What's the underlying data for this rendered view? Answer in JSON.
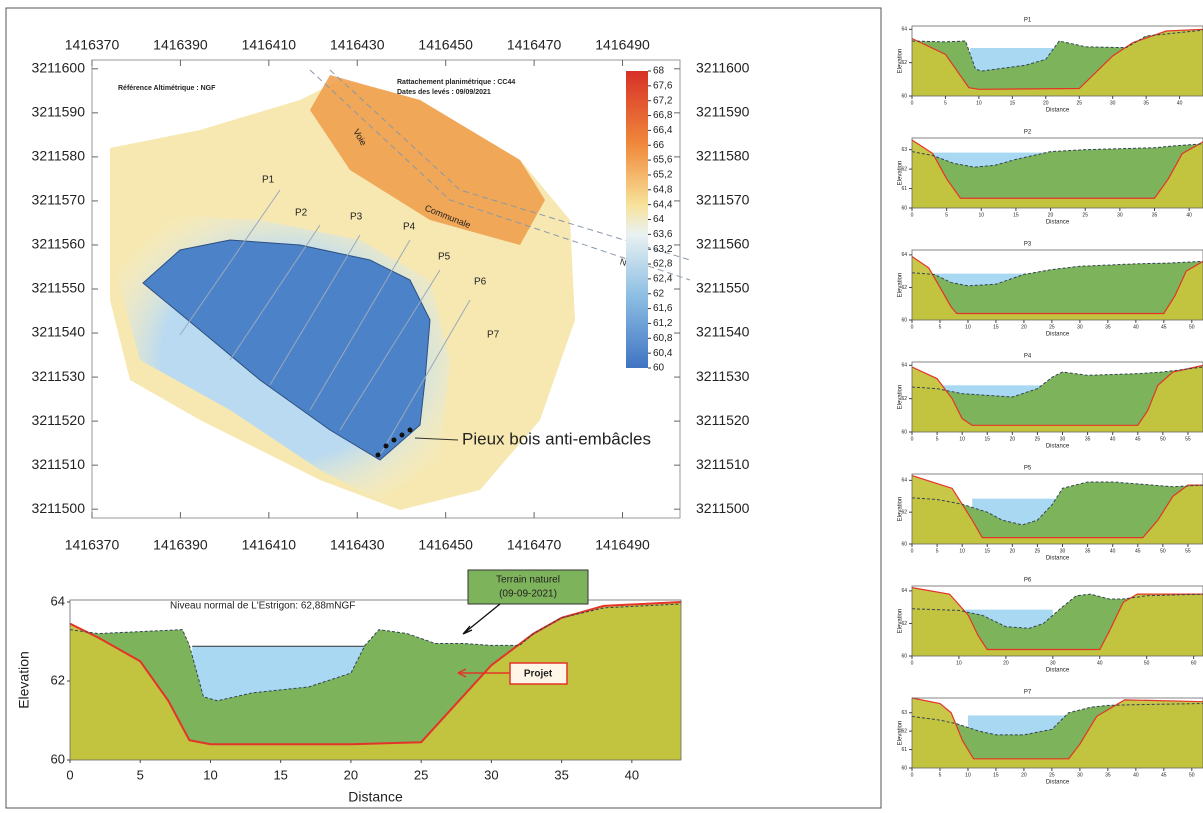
{
  "map": {
    "xlim": [
      1416370,
      1416503
    ],
    "ylim": [
      3211498,
      3211602
    ],
    "xticks": [
      1416370,
      1416390,
      1416410,
      1416430,
      1416450,
      1416470,
      1416490
    ],
    "yticks": [
      3211500,
      3211510,
      3211520,
      3211530,
      3211540,
      3211550,
      3211560,
      3211570,
      3211580,
      3211590,
      3211600
    ],
    "reference": "Référence Altimétrique : NGF",
    "rattachement": "Rattachement planimétrique : CC44",
    "dates": "Dates des levés : 09/09/2021",
    "road": [
      "Voie",
      "Communale",
      "N°5"
    ],
    "profile_labels": [
      "P1",
      "P2",
      "P3",
      "P4",
      "P5",
      "P6",
      "P7"
    ],
    "piles": "Pieux bois anti-embâcles",
    "legend": {
      "lim": [
        60,
        68
      ],
      "ticks": [
        68,
        {
          "value": 67.6,
          "label": "67,6"
        },
        {
          "value": 67.2,
          "label": "67,2"
        },
        {
          "value": 66.8,
          "label": "66,8"
        },
        {
          "value": 66.4,
          "label": "66,4"
        },
        66,
        {
          "value": 65.6,
          "label": "65,6"
        },
        {
          "value": 65.2,
          "label": "65,2"
        },
        {
          "value": 64.8,
          "label": "64,8"
        },
        {
          "value": 64.4,
          "label": "64,4"
        },
        64,
        {
          "value": 63.6,
          "label": "63,6"
        },
        {
          "value": 63.2,
          "label": "63,2"
        },
        {
          "value": 62.8,
          "label": "62,8"
        },
        {
          "value": 62.4,
          "label": "62,4"
        },
        62,
        {
          "value": 61.6,
          "label": "61,6"
        },
        {
          "value": 61.2,
          "label": "61,2"
        },
        {
          "value": 60.8,
          "label": "60,8"
        },
        {
          "value": 60.4,
          "label": "60,4"
        },
        60
      ]
    }
  },
  "main_profile": {
    "xlim": [
      0,
      43.5
    ],
    "ylim": [
      60,
      64.05
    ],
    "xticks": [
      0,
      5,
      10,
      15,
      20,
      25,
      30,
      35,
      40
    ],
    "yticks": [
      60,
      62,
      64
    ],
    "x_label": "Distance",
    "y_label": "Elevation",
    "water_level_label": "Niveau normal de L'Estrigon: 62,88mNGF",
    "terrain_label": [
      "Terrain naturel",
      "(09-09-2021)"
    ],
    "project_label": "Projet",
    "water": {
      "x": [
        8.7,
        26
      ],
      "level": 62.88
    },
    "terrain": {
      "x": [
        0,
        2,
        5,
        8,
        8.5,
        9.5,
        10.5,
        13,
        17,
        20,
        21,
        22,
        24,
        26,
        28,
        30,
        32,
        33,
        35,
        38,
        43.5
      ],
      "y": [
        63.3,
        63.2,
        63.25,
        63.3,
        62.9,
        61.6,
        61.5,
        61.7,
        61.85,
        62.2,
        62.9,
        63.3,
        63.2,
        62.95,
        62.95,
        62.9,
        62.9,
        63.2,
        63.6,
        63.85,
        63.95
      ]
    },
    "project": {
      "x": [
        0,
        2,
        5,
        7,
        8.5,
        10,
        20,
        25,
        30,
        33,
        35,
        38,
        43.5
      ],
      "y": [
        63.45,
        63.1,
        62.5,
        61.5,
        60.5,
        60.4,
        60.4,
        60.45,
        62.4,
        63.2,
        63.6,
        63.9,
        64.0
      ]
    }
  },
  "profiles": [
    {
      "title": "P1",
      "x_label": "Distance",
      "y_label": "Elevation",
      "xlim": [
        0,
        43.5
      ],
      "ylim": [
        60,
        64.2
      ],
      "xticks": [
        0,
        5,
        10,
        15,
        20,
        25,
        30,
        35,
        40
      ],
      "yticks": [
        60,
        62,
        64
      ],
      "water": {
        "x": [
          8.7,
          26
        ],
        "level": 62.88
      },
      "terrain": {
        "x": [
          0,
          5,
          8,
          9.5,
          10.5,
          17,
          20,
          22,
          26,
          32,
          35,
          43.5
        ],
        "y": [
          63.3,
          63.25,
          63.3,
          61.6,
          61.5,
          61.85,
          62.2,
          63.3,
          62.95,
          62.9,
          63.6,
          63.95
        ]
      },
      "project": {
        "x": [
          0,
          5,
          8.5,
          10,
          25,
          30,
          33,
          38,
          43.5
        ],
        "y": [
          63.45,
          62.5,
          60.5,
          60.4,
          60.45,
          62.4,
          63.2,
          63.9,
          64.0
        ]
      }
    },
    {
      "title": "P2",
      "x_label": "Distance",
      "y_label": "Elevation",
      "xlim": [
        0,
        42
      ],
      "ylim": [
        60,
        63.6
      ],
      "xticks": [
        0,
        5,
        10,
        15,
        20,
        25,
        30,
        35,
        40
      ],
      "yticks": [
        60,
        61,
        62,
        63
      ],
      "water": {
        "x": [
          0,
          24.5
        ],
        "level": 62.85
      },
      "terrain": {
        "x": [
          0,
          3,
          6,
          9,
          12,
          15,
          20,
          25,
          30,
          35,
          38,
          42
        ],
        "y": [
          62.9,
          62.7,
          62.3,
          62.1,
          62.2,
          62.5,
          62.9,
          63.0,
          63.05,
          63.1,
          63.2,
          63.3
        ]
      },
      "project": {
        "x": [
          0,
          3,
          5,
          7,
          10,
          35,
          37,
          39,
          42
        ],
        "y": [
          63.5,
          62.8,
          61.5,
          60.5,
          60.5,
          60.5,
          61.5,
          62.8,
          63.4
        ]
      }
    },
    {
      "title": "P3",
      "x_label": "Distance",
      "y_label": "Elevation",
      "xlim": [
        0,
        52
      ],
      "ylim": [
        60,
        64.3
      ],
      "xticks": [
        0,
        5,
        10,
        15,
        20,
        25,
        30,
        35,
        40,
        45,
        50
      ],
      "yticks": [
        60,
        62,
        64
      ],
      "water": {
        "x": [
          4,
          21
        ],
        "level": 62.85
      },
      "terrain": {
        "x": [
          0,
          4,
          7,
          10,
          15,
          20,
          25,
          30,
          40,
          46,
          52
        ],
        "y": [
          62.9,
          62.8,
          62.3,
          62.1,
          62.2,
          62.8,
          63.1,
          63.3,
          63.45,
          63.5,
          63.6
        ]
      },
      "project": {
        "x": [
          0,
          3,
          5,
          7,
          8,
          45,
          47,
          49,
          52
        ],
        "y": [
          63.9,
          63.2,
          62,
          60.8,
          60.4,
          60.4,
          61.5,
          63,
          63.6
        ]
      }
    },
    {
      "title": "P4",
      "x_label": "Distance",
      "y_label": "Elevation",
      "xlim": [
        0,
        58
      ],
      "ylim": [
        60,
        64.2
      ],
      "xticks": [
        0,
        5,
        10,
        15,
        20,
        25,
        30,
        35,
        40,
        45,
        50,
        55
      ],
      "yticks": [
        60,
        62,
        64
      ],
      "water": {
        "x": [
          6,
          27
        ],
        "level": 62.8
      },
      "terrain": {
        "x": [
          0,
          5,
          10,
          15,
          20,
          25,
          28,
          30,
          35,
          45,
          50,
          58
        ],
        "y": [
          62.7,
          62.6,
          62.3,
          62.2,
          62.1,
          62.6,
          63.3,
          63.6,
          63.4,
          63.5,
          63.6,
          63.9
        ]
      },
      "project": {
        "x": [
          0,
          5,
          8,
          10,
          12,
          45,
          47,
          49,
          52,
          58
        ],
        "y": [
          63.9,
          63.2,
          62,
          60.8,
          60.4,
          60.4,
          61.3,
          62.8,
          63.6,
          64.0
        ]
      }
    },
    {
      "title": "P5",
      "x_label": "Distance",
      "y_label": "Elevation",
      "xlim": [
        0,
        58
      ],
      "ylim": [
        60,
        64.4
      ],
      "xticks": [
        0,
        5,
        10,
        15,
        20,
        25,
        30,
        35,
        40,
        45,
        50,
        55
      ],
      "yticks": [
        60,
        62,
        64
      ],
      "water": {
        "x": [
          12,
          31
        ],
        "level": 62.85
      },
      "terrain": {
        "x": [
          0,
          5,
          10,
          15,
          18,
          22,
          25,
          28,
          30,
          35,
          40,
          48,
          52,
          58
        ],
        "y": [
          62.9,
          62.8,
          62.5,
          62.0,
          61.5,
          61.2,
          61.5,
          62.5,
          63.5,
          63.9,
          63.9,
          63.7,
          63.6,
          63.7
        ]
      },
      "project": {
        "x": [
          0,
          5,
          8,
          12,
          14,
          46,
          49,
          52,
          55,
          58
        ],
        "y": [
          64.3,
          63.8,
          63.5,
          61.5,
          60.4,
          60.4,
          61.5,
          63,
          63.7,
          63.7
        ]
      }
    },
    {
      "title": "P6",
      "x_label": "Distance",
      "y_label": "Elevation",
      "xlim": [
        0,
        62
      ],
      "ylim": [
        60,
        64.3
      ],
      "xticks": [
        0,
        10,
        20,
        30,
        40,
        50,
        60
      ],
      "yticks": [
        60,
        62,
        64
      ],
      "water": {
        "x": [
          11,
          30
        ],
        "level": 62.85
      },
      "terrain": {
        "x": [
          0,
          10,
          15,
          20,
          25,
          28,
          32,
          35,
          38,
          42,
          45,
          50,
          62
        ],
        "y": [
          62.9,
          62.8,
          62.5,
          61.8,
          61.7,
          62.0,
          63.0,
          63.7,
          63.8,
          63.5,
          63.5,
          63.7,
          63.8
        ]
      },
      "project": {
        "x": [
          0,
          8,
          12,
          14,
          16,
          40,
          42,
          45,
          48,
          62
        ],
        "y": [
          64.2,
          63.8,
          62.5,
          61.3,
          60.4,
          60.4,
          61.5,
          63.3,
          63.8,
          63.8
        ]
      }
    },
    {
      "title": "P7",
      "x_label": "Distance",
      "y_label": "Elevation",
      "xlim": [
        0,
        52
      ],
      "ylim": [
        60,
        63.8
      ],
      "xticks": [
        0,
        5,
        10,
        15,
        20,
        25,
        30,
        35,
        40,
        45,
        50
      ],
      "yticks": [
        60,
        61,
        62,
        63
      ],
      "water": {
        "x": [
          10,
          28
        ],
        "level": 62.85
      },
      "terrain": {
        "x": [
          0,
          5,
          8,
          12,
          15,
          20,
          25,
          28,
          32,
          35,
          42,
          52
        ],
        "y": [
          62.8,
          62.6,
          62.4,
          62.0,
          61.8,
          61.8,
          62.1,
          63.0,
          63.3,
          63.4,
          63.45,
          63.5
        ]
      },
      "project": {
        "x": [
          0,
          5,
          7,
          9,
          11,
          28,
          30,
          33,
          38,
          52
        ],
        "y": [
          63.8,
          63.5,
          63.0,
          61.5,
          60.5,
          60.5,
          61.3,
          62.8,
          63.7,
          63.6
        ]
      }
    }
  ]
}
